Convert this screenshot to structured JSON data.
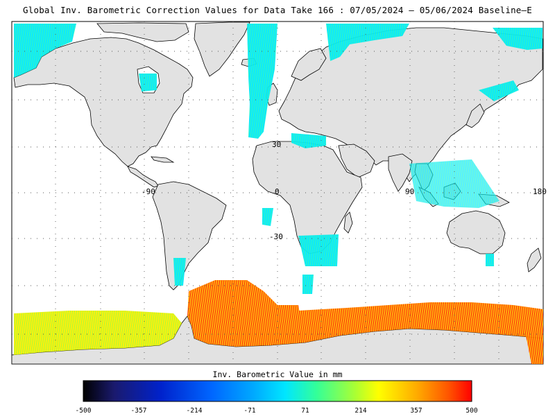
{
  "title": "Global Inv. Barometric Correction Values for Data Take 166 : 07/05/2024 – 05/06/2024 Baseline–E",
  "map": {
    "lat_labels": [
      "30",
      "-30"
    ],
    "lon_labels": [
      "-90",
      "0",
      "90",
      "180"
    ],
    "land_color": "#e2e2e2",
    "ocean_color": "#ffffff",
    "grid_style": "dotted"
  },
  "colorbar": {
    "title": "Inv. Barometric Value in mm",
    "tick_labels": [
      "-500",
      "-357",
      "-214",
      "-71",
      "71",
      "214",
      "357",
      "500"
    ],
    "colors": [
      "#000000",
      "#1a1a6e",
      "#0022cc",
      "#0066ff",
      "#00aaff",
      "#00e6ff",
      "#33ff99",
      "#aaff33",
      "#ffff00",
      "#ffaa00",
      "#ff5500",
      "#ff0000"
    ]
  }
}
